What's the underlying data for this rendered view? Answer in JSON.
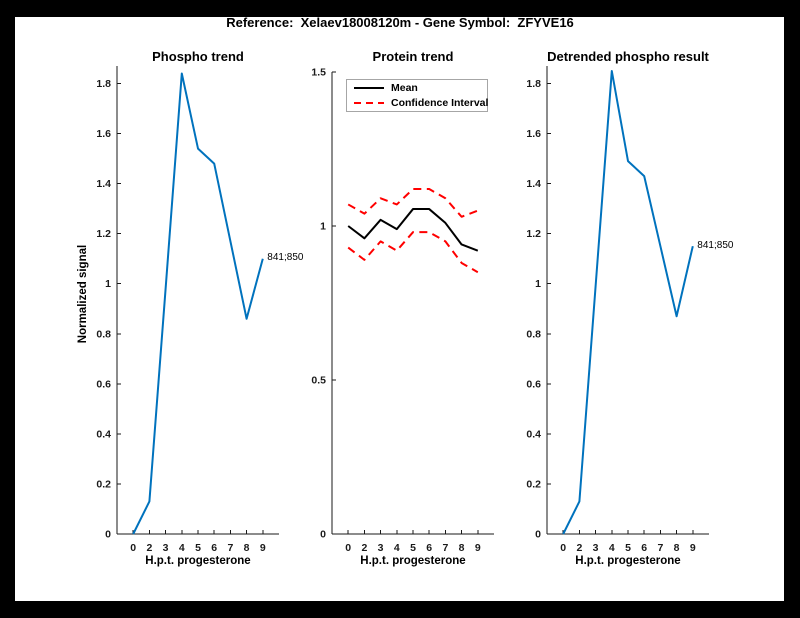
{
  "figure": {
    "title": "Reference:  Xelaev18008120m - Gene Symbol:  ZFYVE16",
    "frame_color": "#000000",
    "background": "#ffffff",
    "axis_color": "#1a1a1a"
  },
  "chart_data": [
    {
      "type": "line",
      "title": "Phospho trend",
      "xlabel": "H.p.t. progesterone",
      "ylabel": "Normalized signal",
      "x_ticklabels": [
        "0",
        "2",
        "3",
        "4",
        "5",
        "6",
        "7",
        "8",
        "9"
      ],
      "y_ticks": [
        0,
        0.2,
        0.4,
        0.6,
        0.8,
        1,
        1.2,
        1.4,
        1.6,
        1.8
      ],
      "ylim": [
        0,
        1.87
      ],
      "grid": false,
      "legend": null,
      "series": [
        {
          "name": "Phospho signal",
          "color": "#0072bd",
          "style": "solid",
          "width": 2,
          "values": [
            0,
            0.13,
            0.98,
            1.84,
            1.54,
            1.48,
            1.17,
            0.86,
            1.1
          ]
        }
      ],
      "annotation": {
        "text": "841;850",
        "at_index": 8
      }
    },
    {
      "type": "line",
      "title": "Protein trend",
      "xlabel": "H.p.t. progesterone",
      "ylabel": "",
      "x_ticklabels": [
        "0",
        "2",
        "3",
        "4",
        "5",
        "6",
        "7",
        "8",
        "9"
      ],
      "y_ticks": [
        0,
        0.5,
        1,
        1.5
      ],
      "ylim": [
        0,
        1.5
      ],
      "grid": false,
      "legend": {
        "position": "northwest",
        "entries": [
          {
            "label": "Mean",
            "color": "#000000",
            "style": "solid"
          },
          {
            "label": "Confidence Interval",
            "color": "#ff0000",
            "style": "dashed"
          }
        ]
      },
      "series": [
        {
          "name": "Mean",
          "color": "#000000",
          "style": "solid",
          "width": 2,
          "values": [
            1.0,
            0.96,
            1.02,
            0.99,
            1.055,
            1.055,
            1.01,
            0.94,
            0.92
          ]
        },
        {
          "name": "Confidence Interval (upper)",
          "color": "#ff0000",
          "style": "dashed",
          "width": 2,
          "values": [
            1.07,
            1.04,
            1.09,
            1.07,
            1.12,
            1.12,
            1.09,
            1.03,
            1.05
          ]
        },
        {
          "name": "Confidence Interval (lower)",
          "color": "#ff0000",
          "style": "dashed",
          "width": 2,
          "values": [
            0.93,
            0.89,
            0.95,
            0.92,
            0.98,
            0.98,
            0.95,
            0.88,
            0.85
          ]
        }
      ],
      "annotation": null
    },
    {
      "type": "line",
      "title": "Detrended phospho result",
      "xlabel": "H.p.t. progesterone",
      "ylabel": "",
      "x_ticklabels": [
        "0",
        "2",
        "3",
        "4",
        "5",
        "6",
        "7",
        "8",
        "9"
      ],
      "y_ticks": [
        0,
        0.2,
        0.4,
        0.6,
        0.8,
        1,
        1.2,
        1.4,
        1.6,
        1.8
      ],
      "ylim": [
        0,
        1.87
      ],
      "grid": false,
      "legend": null,
      "series": [
        {
          "name": "Detrended phospho signal",
          "color": "#0072bd",
          "style": "solid",
          "width": 2,
          "values": [
            0,
            0.13,
            0.99,
            1.85,
            1.49,
            1.43,
            1.15,
            0.87,
            1.15
          ]
        }
      ],
      "annotation": {
        "text": "841;850",
        "at_index": 8
      }
    }
  ]
}
